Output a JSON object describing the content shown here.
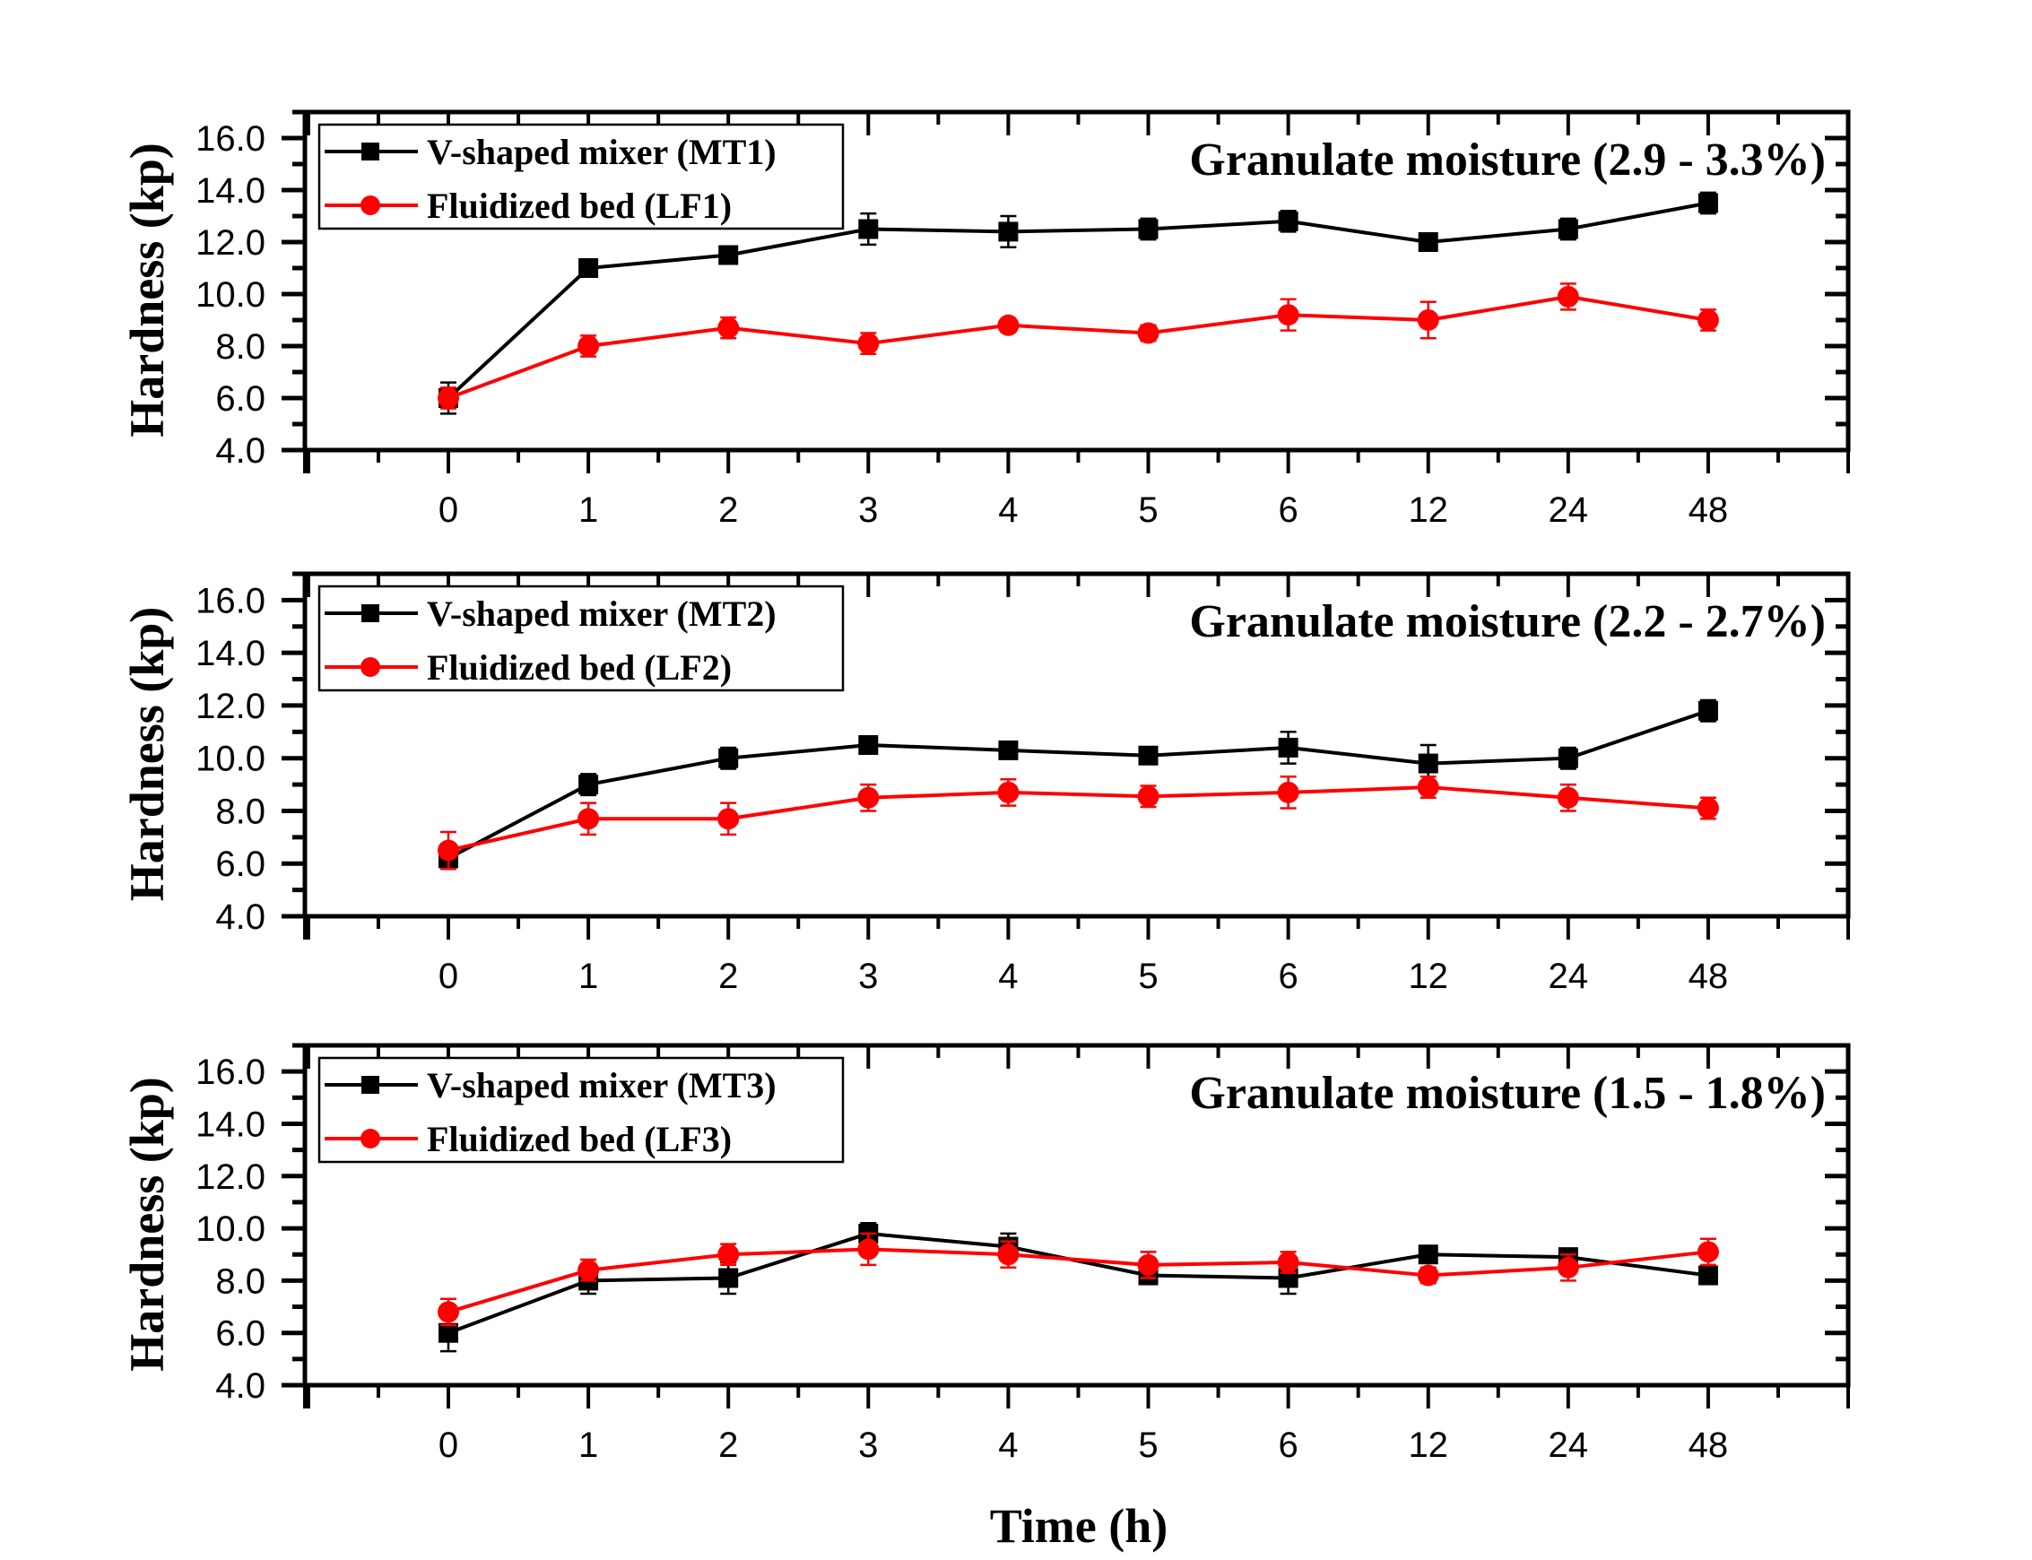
{
  "chart_data": {
    "type": "line",
    "xlabel": "Time (h)",
    "categories": [
      "0",
      "1",
      "2",
      "3",
      "4",
      "5",
      "6",
      "12",
      "24",
      "48"
    ],
    "colors": {
      "mixer": "#000000",
      "fluidized": "#ff0000"
    },
    "panels": [
      {
        "title": "Granulate moisture (2.9 - 3.3%)",
        "ylabel": "Hardness (kp)",
        "ylim": [
          4.0,
          17.0
        ],
        "yticks": [
          "4.0",
          "6.0",
          "8.0",
          "10.0",
          "12.0",
          "14.0",
          "16.0"
        ],
        "legend_placement": "top-left",
        "series": [
          {
            "name": "V-shaped mixer (MT1)",
            "marker": "square",
            "color": "#000000",
            "values": [
              6.0,
              11.0,
              11.5,
              12.5,
              12.4,
              12.5,
              12.8,
              12.0,
              12.5,
              13.5
            ],
            "errors": [
              0.6,
              0.2,
              0.2,
              0.6,
              0.6,
              0.4,
              0.4,
              0.2,
              0.4,
              0.4
            ]
          },
          {
            "name": "Fluidized bed (LF1)",
            "marker": "circle",
            "color": "#ff0000",
            "values": [
              6.0,
              8.0,
              8.7,
              8.1,
              8.8,
              8.5,
              9.2,
              9.0,
              9.9,
              9.0
            ],
            "errors": [
              0.4,
              0.4,
              0.4,
              0.4,
              0.2,
              0.3,
              0.6,
              0.7,
              0.5,
              0.4
            ]
          }
        ]
      },
      {
        "title": "Granulate moisture (2.2 - 2.7%)",
        "ylabel": "Hardness (kp)",
        "ylim": [
          4.0,
          17.0
        ],
        "yticks": [
          "4.0",
          "6.0",
          "8.0",
          "10.0",
          "12.0",
          "14.0",
          "16.0"
        ],
        "legend_placement": "top-left",
        "series": [
          {
            "name": "V-shaped mixer (MT2)",
            "marker": "square",
            "color": "#000000",
            "values": [
              6.2,
              9.0,
              10.0,
              10.5,
              10.3,
              10.1,
              10.4,
              9.8,
              10.0,
              11.8
            ],
            "errors": [
              0.4,
              0.4,
              0.4,
              0.3,
              0.3,
              0.3,
              0.6,
              0.7,
              0.4,
              0.4
            ]
          },
          {
            "name": "Fluidized bed (LF2)",
            "marker": "circle",
            "color": "#ff0000",
            "values": [
              6.5,
              7.7,
              7.7,
              8.5,
              8.7,
              8.55,
              8.7,
              8.9,
              8.5,
              8.1
            ],
            "errors": [
              0.7,
              0.6,
              0.6,
              0.5,
              0.5,
              0.4,
              0.6,
              0.4,
              0.5,
              0.4
            ]
          }
        ]
      },
      {
        "title": "Granulate moisture (1.5 - 1.8%)",
        "ylabel": "Hardness (kp)",
        "ylim": [
          4.0,
          17.0
        ],
        "yticks": [
          "4.0",
          "6.0",
          "8.0",
          "10.0",
          "12.0",
          "14.0",
          "16.0"
        ],
        "legend_placement": "top-left",
        "series": [
          {
            "name": "V-shaped mixer (MT3)",
            "marker": "square",
            "color": "#000000",
            "values": [
              6.0,
              8.0,
              8.1,
              9.8,
              9.3,
              8.2,
              8.1,
              9.0,
              8.9,
              8.2
            ],
            "errors": [
              0.7,
              0.5,
              0.6,
              0.4,
              0.5,
              0.3,
              0.6,
              0.3,
              0.3,
              0.3
            ]
          },
          {
            "name": "Fluidized bed (LF3)",
            "marker": "circle",
            "color": "#ff0000",
            "values": [
              6.8,
              8.4,
              9.0,
              9.2,
              9.0,
              8.6,
              8.7,
              8.2,
              8.5,
              9.1
            ],
            "errors": [
              0.5,
              0.4,
              0.4,
              0.6,
              0.5,
              0.5,
              0.4,
              0.3,
              0.5,
              0.5
            ]
          }
        ]
      }
    ]
  }
}
